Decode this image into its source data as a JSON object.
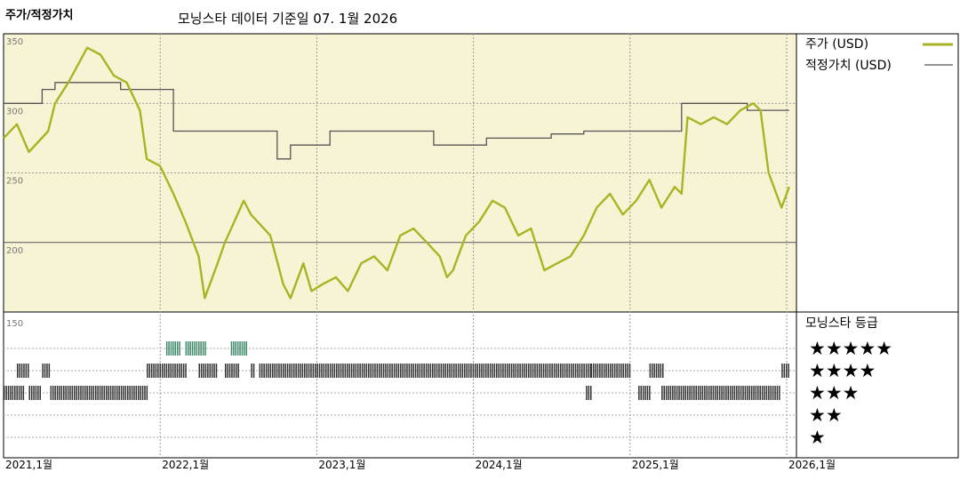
{
  "header": {
    "title_left": "주가/적정가치",
    "title_center": "모닝스타 데이터 기준일 07. 1월 2026"
  },
  "legend": {
    "price_label": "주가 (USD)",
    "fair_label": "적정가치 (USD)",
    "rating_title": "모닝스타 등급",
    "stars": [
      "★★★★★",
      "★★★★",
      "★★★",
      "★★",
      "★"
    ]
  },
  "colors": {
    "price": "#a8b423",
    "fair": "#555555",
    "plot_bg": "#f7f4d6",
    "five_star": "#3f8a6a",
    "star_bar": "#333333"
  },
  "chart_data": {
    "type": "line",
    "x_ticks": [
      "2021,1월",
      "2022,1월",
      "2023,1월",
      "2024,1월",
      "2025,1월",
      "2026,1월"
    ],
    "y_ticks": [
      350,
      300,
      250,
      200,
      150
    ],
    "ylim": [
      150,
      350
    ],
    "xlim": [
      "2021-01",
      "2026-01"
    ],
    "grid": true,
    "series": [
      {
        "name": "주가 (USD)",
        "points": [
          [
            "2021-01-01",
            275
          ],
          [
            "2021-02-01",
            285
          ],
          [
            "2021-03-01",
            265
          ],
          [
            "2021-04-15",
            280
          ],
          [
            "2021-05-01",
            300
          ],
          [
            "2021-06-01",
            315
          ],
          [
            "2021-07-15",
            340
          ],
          [
            "2021-08-15",
            335
          ],
          [
            "2021-09-15",
            320
          ],
          [
            "2021-10-15",
            315
          ],
          [
            "2021-11-15",
            295
          ],
          [
            "2021-12-01",
            260
          ],
          [
            "2022-01-01",
            255
          ],
          [
            "2022-02-01",
            235
          ],
          [
            "2022-03-01",
            215
          ],
          [
            "2022-04-01",
            190
          ],
          [
            "2022-04-15",
            160
          ],
          [
            "2022-05-15",
            185
          ],
          [
            "2022-06-01",
            200
          ],
          [
            "2022-07-15",
            230
          ],
          [
            "2022-08-01",
            220
          ],
          [
            "2022-09-15",
            205
          ],
          [
            "2022-10-15",
            170
          ],
          [
            "2022-11-01",
            160
          ],
          [
            "2022-12-01",
            185
          ],
          [
            "2022-12-20",
            165
          ],
          [
            "2023-01-15",
            170
          ],
          [
            "2023-02-15",
            175
          ],
          [
            "2023-03-15",
            165
          ],
          [
            "2023-04-15",
            185
          ],
          [
            "2023-05-15",
            190
          ],
          [
            "2023-06-15",
            180
          ],
          [
            "2023-07-15",
            205
          ],
          [
            "2023-08-15",
            210
          ],
          [
            "2023-09-15",
            200
          ],
          [
            "2023-10-15",
            190
          ],
          [
            "2023-11-01",
            175
          ],
          [
            "2023-11-15",
            180
          ],
          [
            "2023-12-15",
            205
          ],
          [
            "2024-01-15",
            215
          ],
          [
            "2024-02-15",
            230
          ],
          [
            "2024-03-15",
            225
          ],
          [
            "2024-04-15",
            205
          ],
          [
            "2024-05-15",
            210
          ],
          [
            "2024-06-15",
            180
          ],
          [
            "2024-07-15",
            185
          ],
          [
            "2024-08-15",
            190
          ],
          [
            "2024-09-15",
            205
          ],
          [
            "2024-10-15",
            225
          ],
          [
            "2024-11-15",
            235
          ],
          [
            "2024-12-15",
            220
          ],
          [
            "2025-01-15",
            230
          ],
          [
            "2025-02-15",
            245
          ],
          [
            "2025-03-15",
            225
          ],
          [
            "2025-04-15",
            240
          ],
          [
            "2025-05-01",
            235
          ],
          [
            "2025-05-15",
            290
          ],
          [
            "2025-06-15",
            285
          ],
          [
            "2025-07-15",
            290
          ],
          [
            "2025-08-15",
            285
          ],
          [
            "2025-09-15",
            295
          ],
          [
            "2025-10-15",
            300
          ],
          [
            "2025-11-01",
            295
          ],
          [
            "2025-11-20",
            250
          ],
          [
            "2025-12-20",
            225
          ],
          [
            "2026-01-07",
            240
          ]
        ]
      },
      {
        "name": "적정가치 (USD)",
        "steps": [
          [
            "2021-01-01",
            300
          ],
          [
            "2021-04-01",
            310
          ],
          [
            "2021-05-01",
            315
          ],
          [
            "2021-10-01",
            310
          ],
          [
            "2022-02-01",
            280
          ],
          [
            "2022-10-01",
            260
          ],
          [
            "2022-11-01",
            270
          ],
          [
            "2023-02-01",
            280
          ],
          [
            "2023-10-01",
            270
          ],
          [
            "2024-02-01",
            275
          ],
          [
            "2024-07-01",
            278
          ],
          [
            "2024-09-15",
            280
          ],
          [
            "2025-05-01",
            300
          ],
          [
            "2025-10-01",
            295
          ]
        ]
      }
    ],
    "ratings": {
      "5": [
        [
          "2022-01-15",
          "2022-02-15"
        ],
        [
          "2022-03-01",
          "2022-04-15"
        ],
        [
          "2022-06-15",
          "2022-07-20"
        ]
      ],
      "4": [
        [
          "2021-02-01",
          "2021-03-01"
        ],
        [
          "2021-04-01",
          "2021-04-20"
        ],
        [
          "2021-12-01",
          "2022-03-01"
        ],
        [
          "2022-04-01",
          "2022-05-15"
        ],
        [
          "2022-06-01",
          "2022-07-01"
        ],
        [
          "2022-08-01",
          "2022-08-10"
        ],
        [
          "2022-08-20",
          "2024-09-30"
        ],
        [
          "2024-10-01",
          "2024-12-31"
        ],
        [
          "2025-02-15",
          "2025-03-20"
        ],
        [
          "2025-12-20",
          "2026-01-07"
        ]
      ],
      "3": [
        [
          "2021-01-01",
          "2021-02-15"
        ],
        [
          "2021-03-01",
          "2021-03-30"
        ],
        [
          "2021-04-20",
          "2021-12-01"
        ],
        [
          "2024-09-20",
          "2024-10-01"
        ],
        [
          "2025-01-20",
          "2025-02-15"
        ],
        [
          "2025-03-15",
          "2025-12-15"
        ]
      ],
      "2": [],
      "1": []
    }
  }
}
